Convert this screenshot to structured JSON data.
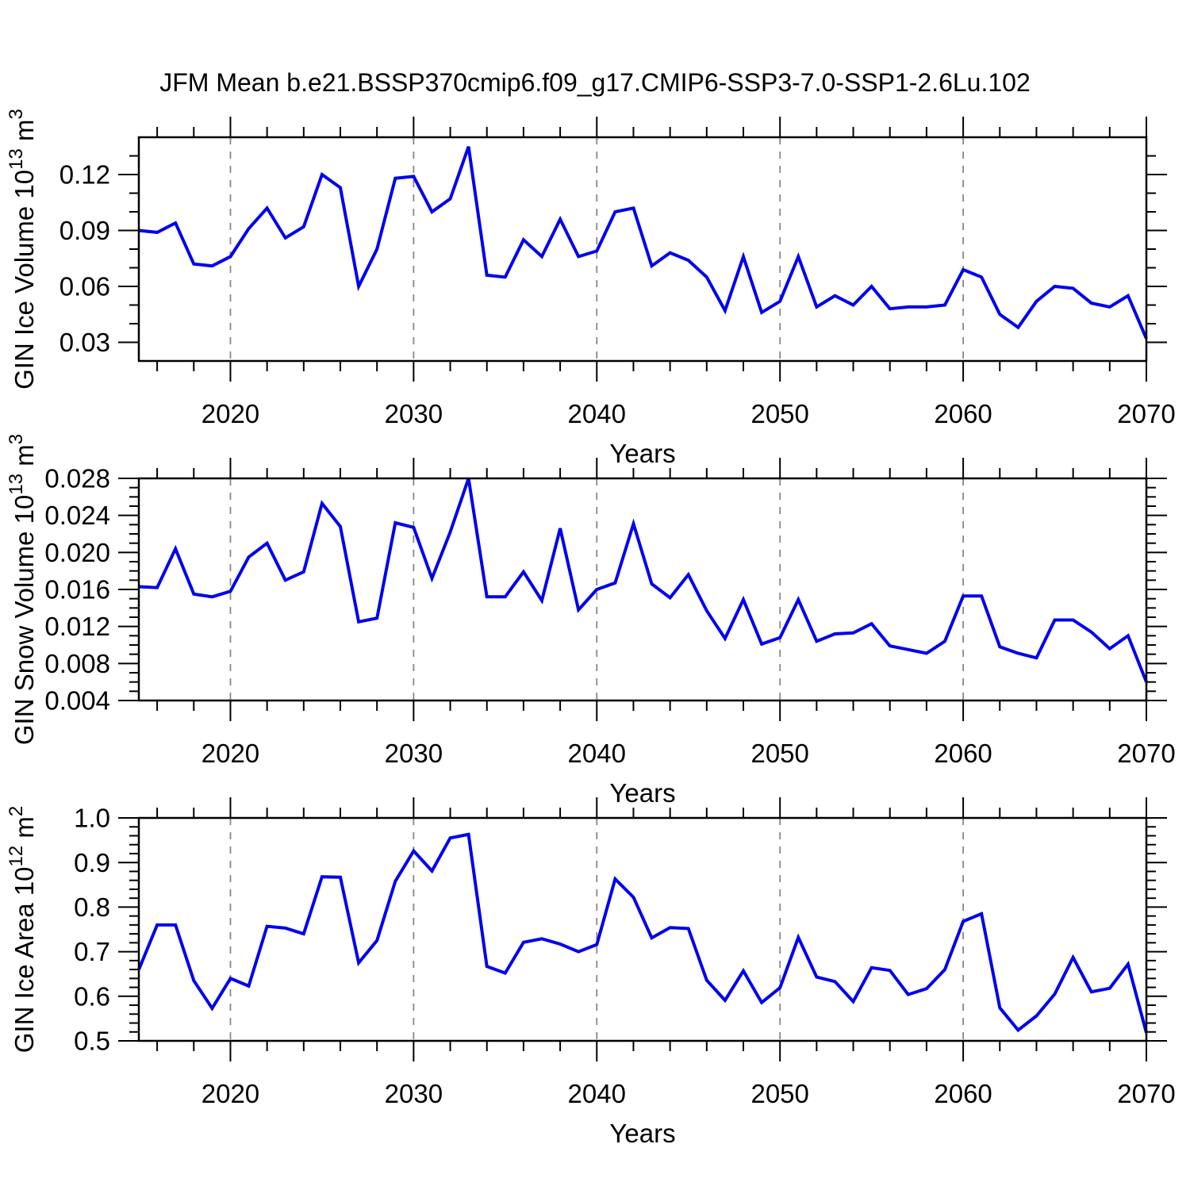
{
  "title": "JFM Mean b.e21.BSSP370cmip6.f09_g17.CMIP6-SSP3-7.0-SSP1-2.6Lu.102",
  "colors": {
    "line": "#0000EE",
    "axis": "#000000",
    "gridline": "#888888",
    "background": "#FFFFFF"
  },
  "x_axis": {
    "label": "Years",
    "range": [
      2015,
      2070
    ],
    "major_tick_years": [
      2020,
      2030,
      2040,
      2050,
      2060,
      2070
    ],
    "major_tick_labels": [
      "2020",
      "2030",
      "2040",
      "2050",
      "2060",
      "2070"
    ],
    "minor_tick_step_years": 2,
    "gridline_years": [
      2020,
      2030,
      2040,
      2050,
      2060
    ]
  },
  "years": [
    2015,
    2016,
    2017,
    2018,
    2019,
    2020,
    2021,
    2022,
    2023,
    2024,
    2025,
    2026,
    2027,
    2028,
    2029,
    2030,
    2031,
    2032,
    2033,
    2034,
    2035,
    2036,
    2037,
    2038,
    2039,
    2040,
    2041,
    2042,
    2043,
    2044,
    2045,
    2046,
    2047,
    2048,
    2049,
    2050,
    2051,
    2052,
    2053,
    2054,
    2055,
    2056,
    2057,
    2058,
    2059,
    2060,
    2061,
    2062,
    2063,
    2064,
    2065,
    2066,
    2067,
    2068,
    2069,
    2070
  ],
  "chart_data": [
    {
      "type": "line",
      "name": "gin-ice-volume",
      "ylabel": "GIN Ice Volume 10¹³ m³",
      "ylabel_segments": [
        {
          "t": "GIN Ice Volume 10",
          "sup": false
        },
        {
          "t": "13",
          "sup": true
        },
        {
          "t": " m",
          "sup": false
        },
        {
          "t": "3",
          "sup": true
        }
      ],
      "xlabel": "Years",
      "ylim": [
        0.02,
        0.14
      ],
      "ytick_major": [
        {
          "v": 0.03,
          "label": "0.03"
        },
        {
          "v": 0.06,
          "label": "0.06"
        },
        {
          "v": 0.09,
          "label": "0.09"
        },
        {
          "v": 0.12,
          "label": "0.12"
        }
      ],
      "ytick_minor_step": 0.01,
      "values": [
        0.09,
        0.089,
        0.094,
        0.072,
        0.071,
        0.076,
        0.091,
        0.102,
        0.086,
        0.092,
        0.12,
        0.113,
        0.06,
        0.08,
        0.118,
        0.119,
        0.1,
        0.107,
        0.135,
        0.066,
        0.065,
        0.085,
        0.076,
        0.096,
        0.076,
        0.079,
        0.1,
        0.102,
        0.071,
        0.078,
        0.074,
        0.065,
        0.047,
        0.076,
        0.046,
        0.052,
        0.076,
        0.049,
        0.055,
        0.05,
        0.06,
        0.048,
        0.049,
        0.049,
        0.05,
        0.069,
        0.065,
        0.045,
        0.038,
        0.052,
        0.06,
        0.059,
        0.051,
        0.049,
        0.055,
        0.032
      ]
    },
    {
      "type": "line",
      "name": "gin-snow-volume",
      "ylabel": "GIN Snow Volume 10¹³ m³",
      "ylabel_segments": [
        {
          "t": "GIN Snow Volume 10",
          "sup": false
        },
        {
          "t": "13",
          "sup": true
        },
        {
          "t": " m",
          "sup": false
        },
        {
          "t": "3",
          "sup": true
        }
      ],
      "xlabel": "Years",
      "ylim": [
        0.004,
        0.028
      ],
      "ytick_major": [
        {
          "v": 0.004,
          "label": "0.004"
        },
        {
          "v": 0.008,
          "label": "0.008"
        },
        {
          "v": 0.012,
          "label": "0.012"
        },
        {
          "v": 0.016,
          "label": "0.016"
        },
        {
          "v": 0.02,
          "label": "0.020"
        },
        {
          "v": 0.024,
          "label": "0.024"
        },
        {
          "v": 0.028,
          "label": "0.028"
        }
      ],
      "ytick_minor_step": 0.001,
      "values": [
        0.0163,
        0.0162,
        0.0204,
        0.0155,
        0.0152,
        0.0158,
        0.0195,
        0.021,
        0.017,
        0.0179,
        0.0253,
        0.0228,
        0.0125,
        0.0129,
        0.0232,
        0.0227,
        0.0172,
        0.0222,
        0.028,
        0.0152,
        0.0152,
        0.0179,
        0.0148,
        0.0226,
        0.0138,
        0.016,
        0.0167,
        0.0231,
        0.0166,
        0.0151,
        0.0176,
        0.0137,
        0.0107,
        0.0149,
        0.0101,
        0.0108,
        0.0149,
        0.0104,
        0.0112,
        0.0113,
        0.0123,
        0.0099,
        0.0095,
        0.0091,
        0.0104,
        0.0153,
        0.0153,
        0.0098,
        0.0091,
        0.0086,
        0.0127,
        0.0127,
        0.0114,
        0.0096,
        0.011,
        0.006
      ]
    },
    {
      "type": "line",
      "name": "gin-ice-area",
      "ylabel": "GIN Ice Area 10¹² m²",
      "ylabel_segments": [
        {
          "t": "GIN Ice Area 10",
          "sup": false
        },
        {
          "t": "12",
          "sup": true
        },
        {
          "t": " m",
          "sup": false
        },
        {
          "t": "2",
          "sup": true
        }
      ],
      "xlabel": "Years",
      "ylim": [
        0.5,
        1.0
      ],
      "ytick_major": [
        {
          "v": 0.5,
          "label": "0.5"
        },
        {
          "v": 0.6,
          "label": "0.6"
        },
        {
          "v": 0.7,
          "label": "0.7"
        },
        {
          "v": 0.8,
          "label": "0.8"
        },
        {
          "v": 0.9,
          "label": "0.9"
        },
        {
          "v": 1.0,
          "label": "1.0"
        }
      ],
      "ytick_minor_step": 0.02,
      "values": [
        0.66,
        0.76,
        0.76,
        0.635,
        0.573,
        0.64,
        0.623,
        0.757,
        0.753,
        0.74,
        0.868,
        0.867,
        0.675,
        0.725,
        0.858,
        0.926,
        0.881,
        0.955,
        0.963,
        0.667,
        0.652,
        0.721,
        0.729,
        0.717,
        0.7,
        0.716,
        0.863,
        0.822,
        0.731,
        0.754,
        0.752,
        0.636,
        0.591,
        0.657,
        0.586,
        0.619,
        0.732,
        0.643,
        0.633,
        0.588,
        0.664,
        0.658,
        0.604,
        0.617,
        0.66,
        0.768,
        0.785,
        0.574,
        0.524,
        0.556,
        0.605,
        0.687,
        0.61,
        0.618,
        0.672,
        0.518
      ]
    }
  ]
}
